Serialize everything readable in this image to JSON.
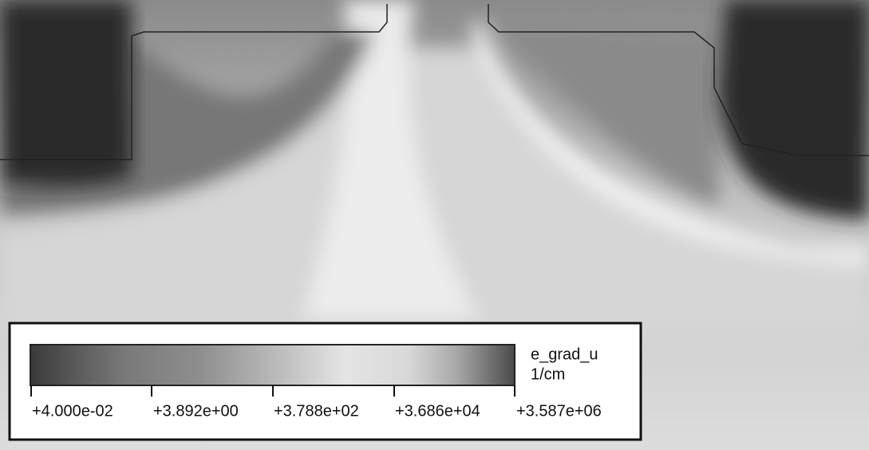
{
  "legend": {
    "variable": "e_grad_u",
    "unit": "1/cm",
    "ticks": [
      "+4.000e-02",
      "+3.892e+00",
      "+3.788e+02",
      "+3.686e+04",
      "+3.587e+06"
    ]
  }
}
